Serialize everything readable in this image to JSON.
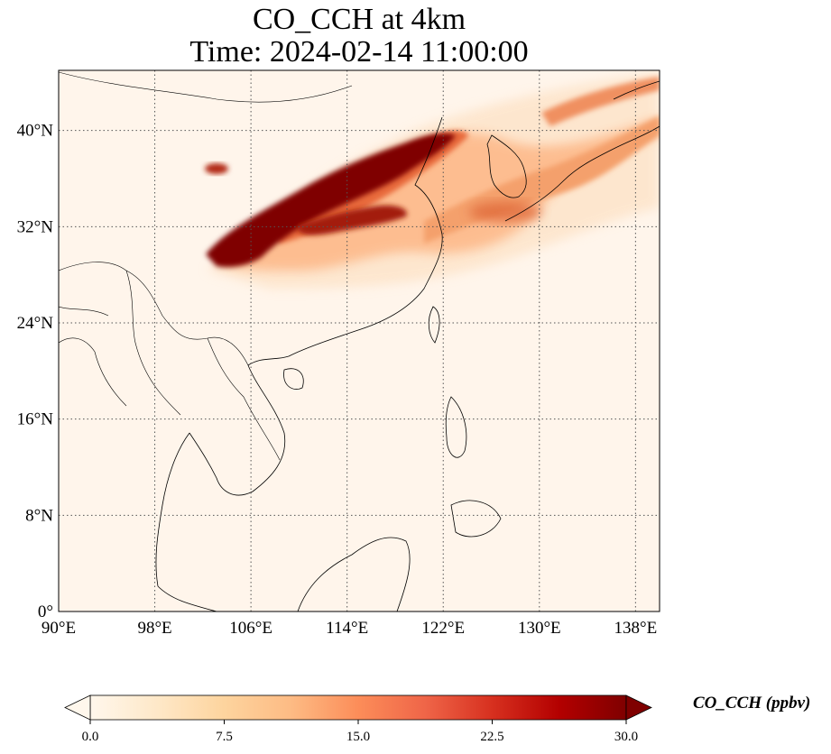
{
  "title": {
    "line1": "CO_CCH at 4km",
    "line2": "Time: 2024-02-14 11:00:00"
  },
  "map": {
    "lon_range": [
      90,
      140
    ],
    "lat_range": [
      0,
      45
    ],
    "lon_ticks": [
      "90°E",
      "98°E",
      "106°E",
      "114°E",
      "122°E",
      "130°E",
      "138°E"
    ],
    "lat_ticks": [
      "0°",
      "8°N",
      "16°N",
      "24°N",
      "32°N",
      "40°N"
    ],
    "gridlines": "dotted",
    "background_color": "#fff5eb",
    "plume_colors": [
      "#fde0c4",
      "#fdae6b",
      "#f16913",
      "#d94801",
      "#a63603",
      "#7f0000"
    ]
  },
  "colorbar": {
    "label": "CO_CCH (ppbv)",
    "range": [
      0.0,
      30.0
    ],
    "ticks": [
      "0.0",
      "7.5",
      "15.0",
      "22.5",
      "30.0"
    ],
    "extend": "both",
    "colormap": "OrRd",
    "stops": [
      "#fff7ec",
      "#fee8c8",
      "#fdd49e",
      "#fdbb84",
      "#fc8d59",
      "#ef6548",
      "#d7301f",
      "#b30000",
      "#7f0000"
    ]
  }
}
